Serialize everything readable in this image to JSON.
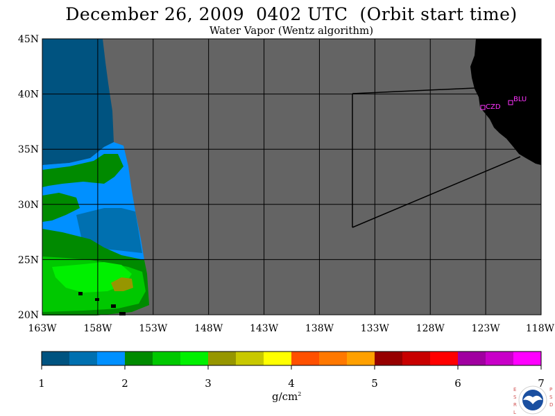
{
  "title": "December 26, 2009  0402 UTC  (Orbit start time)",
  "subtitle": "Water Vapor (Wentz algorithm)",
  "map": {
    "lon_ticks": [
      "163W",
      "158W",
      "153W",
      "148W",
      "143W",
      "138W",
      "133W",
      "128W",
      "123W",
      "118W"
    ],
    "lat_ticks": [
      "45N",
      "40N",
      "35N",
      "30N",
      "25N",
      "20N"
    ],
    "stations": [
      {
        "id": "CZD",
        "lon": -123.0,
        "lat": 38.6
      },
      {
        "id": "BLU",
        "lon": -120.7,
        "lat": 39.3
      }
    ],
    "land_color": "#000000",
    "no_data_color": "#646464",
    "grid_color": "#000000"
  },
  "colorbar": {
    "colors": [
      "#005380",
      "#0070b0",
      "#0090ff",
      "#008a00",
      "#00c800",
      "#00f000",
      "#969600",
      "#c8c800",
      "#ffff00",
      "#ff5000",
      "#ff7800",
      "#ffa000",
      "#960000",
      "#c80000",
      "#ff0000",
      "#a000a0",
      "#c800c8",
      "#ff00ff"
    ],
    "tick_labels": [
      "1",
      "2",
      "3",
      "4",
      "5",
      "6",
      "7"
    ],
    "units": "g/cm",
    "units_sup": "2"
  },
  "logo": {
    "left": "ESRL",
    "right": "PSD",
    "center": "NOAA"
  }
}
